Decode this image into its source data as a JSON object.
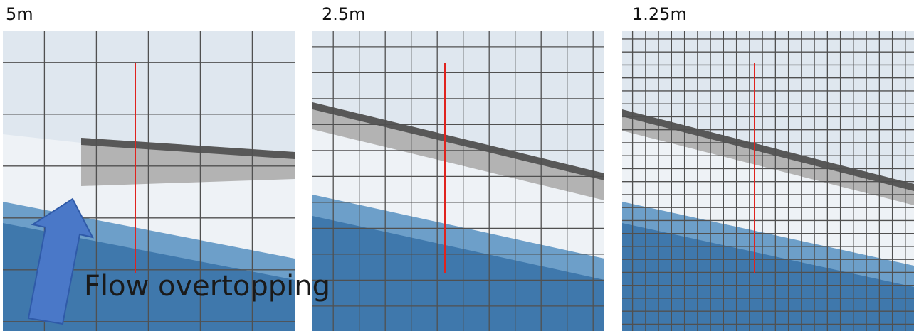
{
  "panels": [
    {
      "label": "5m"
    },
    {
      "label": "2.5m"
    },
    {
      "label": "1.25m"
    }
  ],
  "annotation": {
    "text": "Flow overtopping"
  },
  "colors": {
    "background_light": "#dfe7ef",
    "water_deep": "#3f78ac",
    "water_mid": "#6d9fc9",
    "bank_light": "#eef2f6",
    "obstacle_gray": "#b3b3b3",
    "obstacle_dark": "#3a3a3a",
    "grid_line": "#505050",
    "section_line": "#e0231e",
    "arrow_fill": "#4a78c8",
    "arrow_stroke": "#2f5aa8"
  }
}
